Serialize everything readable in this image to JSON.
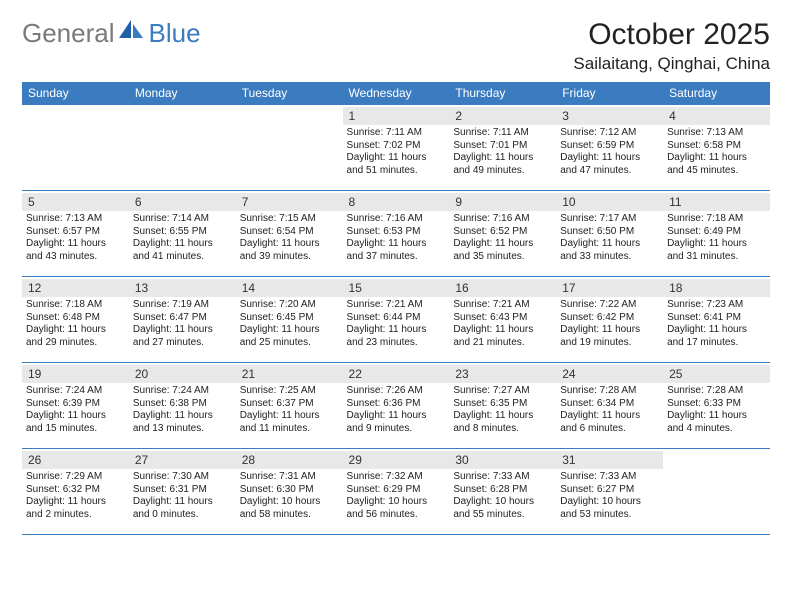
{
  "logo": {
    "general": "General",
    "blue": "Blue"
  },
  "title": "October 2025",
  "location": "Sailaitang, Qinghai, China",
  "colors": {
    "header_bg": "#3b7bbf",
    "header_text": "#ffffff",
    "daynum_bg": "#e8e8e8",
    "border": "#3b7bbf",
    "logo_gray": "#7a7a7a",
    "logo_blue": "#3b7bbf",
    "text": "#222222"
  },
  "dayHeaders": [
    "Sunday",
    "Monday",
    "Tuesday",
    "Wednesday",
    "Thursday",
    "Friday",
    "Saturday"
  ],
  "weeks": [
    [
      {
        "n": "",
        "sr": "",
        "ss": "",
        "dl": ""
      },
      {
        "n": "",
        "sr": "",
        "ss": "",
        "dl": ""
      },
      {
        "n": "",
        "sr": "",
        "ss": "",
        "dl": ""
      },
      {
        "n": "1",
        "sr": "7:11 AM",
        "ss": "7:02 PM",
        "dl": "11 hours and 51 minutes."
      },
      {
        "n": "2",
        "sr": "7:11 AM",
        "ss": "7:01 PM",
        "dl": "11 hours and 49 minutes."
      },
      {
        "n": "3",
        "sr": "7:12 AM",
        "ss": "6:59 PM",
        "dl": "11 hours and 47 minutes."
      },
      {
        "n": "4",
        "sr": "7:13 AM",
        "ss": "6:58 PM",
        "dl": "11 hours and 45 minutes."
      }
    ],
    [
      {
        "n": "5",
        "sr": "7:13 AM",
        "ss": "6:57 PM",
        "dl": "11 hours and 43 minutes."
      },
      {
        "n": "6",
        "sr": "7:14 AM",
        "ss": "6:55 PM",
        "dl": "11 hours and 41 minutes."
      },
      {
        "n": "7",
        "sr": "7:15 AM",
        "ss": "6:54 PM",
        "dl": "11 hours and 39 minutes."
      },
      {
        "n": "8",
        "sr": "7:16 AM",
        "ss": "6:53 PM",
        "dl": "11 hours and 37 minutes."
      },
      {
        "n": "9",
        "sr": "7:16 AM",
        "ss": "6:52 PM",
        "dl": "11 hours and 35 minutes."
      },
      {
        "n": "10",
        "sr": "7:17 AM",
        "ss": "6:50 PM",
        "dl": "11 hours and 33 minutes."
      },
      {
        "n": "11",
        "sr": "7:18 AM",
        "ss": "6:49 PM",
        "dl": "11 hours and 31 minutes."
      }
    ],
    [
      {
        "n": "12",
        "sr": "7:18 AM",
        "ss": "6:48 PM",
        "dl": "11 hours and 29 minutes."
      },
      {
        "n": "13",
        "sr": "7:19 AM",
        "ss": "6:47 PM",
        "dl": "11 hours and 27 minutes."
      },
      {
        "n": "14",
        "sr": "7:20 AM",
        "ss": "6:45 PM",
        "dl": "11 hours and 25 minutes."
      },
      {
        "n": "15",
        "sr": "7:21 AM",
        "ss": "6:44 PM",
        "dl": "11 hours and 23 minutes."
      },
      {
        "n": "16",
        "sr": "7:21 AM",
        "ss": "6:43 PM",
        "dl": "11 hours and 21 minutes."
      },
      {
        "n": "17",
        "sr": "7:22 AM",
        "ss": "6:42 PM",
        "dl": "11 hours and 19 minutes."
      },
      {
        "n": "18",
        "sr": "7:23 AM",
        "ss": "6:41 PM",
        "dl": "11 hours and 17 minutes."
      }
    ],
    [
      {
        "n": "19",
        "sr": "7:24 AM",
        "ss": "6:39 PM",
        "dl": "11 hours and 15 minutes."
      },
      {
        "n": "20",
        "sr": "7:24 AM",
        "ss": "6:38 PM",
        "dl": "11 hours and 13 minutes."
      },
      {
        "n": "21",
        "sr": "7:25 AM",
        "ss": "6:37 PM",
        "dl": "11 hours and 11 minutes."
      },
      {
        "n": "22",
        "sr": "7:26 AM",
        "ss": "6:36 PM",
        "dl": "11 hours and 9 minutes."
      },
      {
        "n": "23",
        "sr": "7:27 AM",
        "ss": "6:35 PM",
        "dl": "11 hours and 8 minutes."
      },
      {
        "n": "24",
        "sr": "7:28 AM",
        "ss": "6:34 PM",
        "dl": "11 hours and 6 minutes."
      },
      {
        "n": "25",
        "sr": "7:28 AM",
        "ss": "6:33 PM",
        "dl": "11 hours and 4 minutes."
      }
    ],
    [
      {
        "n": "26",
        "sr": "7:29 AM",
        "ss": "6:32 PM",
        "dl": "11 hours and 2 minutes."
      },
      {
        "n": "27",
        "sr": "7:30 AM",
        "ss": "6:31 PM",
        "dl": "11 hours and 0 minutes."
      },
      {
        "n": "28",
        "sr": "7:31 AM",
        "ss": "6:30 PM",
        "dl": "10 hours and 58 minutes."
      },
      {
        "n": "29",
        "sr": "7:32 AM",
        "ss": "6:29 PM",
        "dl": "10 hours and 56 minutes."
      },
      {
        "n": "30",
        "sr": "7:33 AM",
        "ss": "6:28 PM",
        "dl": "10 hours and 55 minutes."
      },
      {
        "n": "31",
        "sr": "7:33 AM",
        "ss": "6:27 PM",
        "dl": "10 hours and 53 minutes."
      },
      {
        "n": "",
        "sr": "",
        "ss": "",
        "dl": ""
      }
    ]
  ]
}
